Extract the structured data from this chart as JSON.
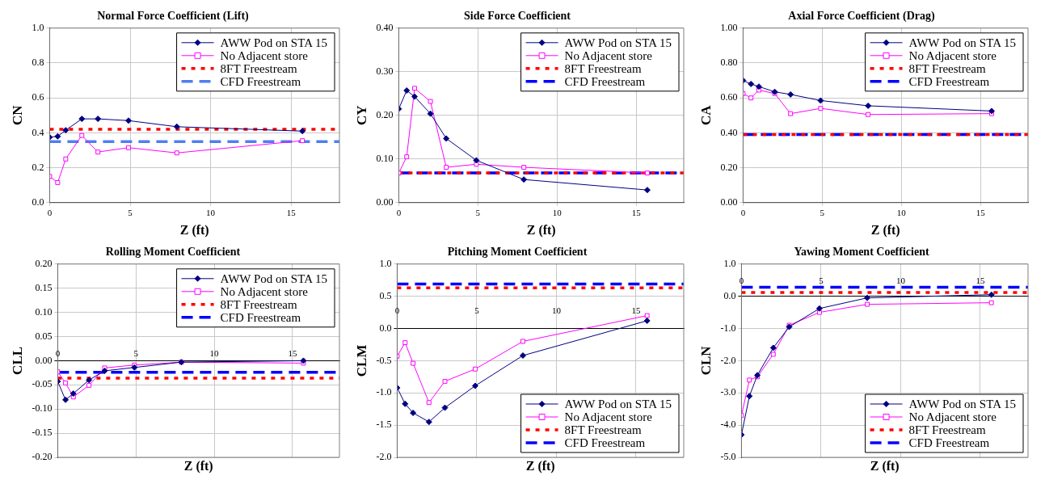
{
  "chart_data": [
    {
      "type": "line",
      "title": "Normal Force Coefficient (Lift)",
      "xlabel": "Z (ft)",
      "ylabel": "CN",
      "x": [
        0,
        0.5,
        1,
        2,
        3,
        4.9,
        7.9,
        15.7
      ],
      "xlim": [
        0,
        18
      ],
      "xticks": [
        0,
        5,
        10,
        15
      ],
      "ylim": [
        0,
        1
      ],
      "yticks": [
        {
          "value": 0,
          "label": "0.0"
        },
        {
          "value": 0.2,
          "label": "0.2"
        },
        {
          "value": 0.4,
          "label": "0.4"
        },
        {
          "value": 0.6,
          "label": "0.6"
        },
        {
          "value": 0.8,
          "label": "0.8"
        },
        {
          "value": 1,
          "label": "1.0"
        }
      ],
      "grid": true,
      "legend": "top right",
      "series": [
        {
          "name": "AWW Pod on STA 15",
          "color": "#000080",
          "marker": "diamond",
          "line_style": "solid",
          "values": [
            0.375,
            0.38,
            0.415,
            0.48,
            0.48,
            0.47,
            0.435,
            0.41
          ]
        },
        {
          "name": "No Adjacent store",
          "color": "#ff00ff",
          "marker": "square",
          "line_style": "solid",
          "values": [
            0.15,
            0.115,
            0.25,
            0.385,
            0.29,
            0.315,
            0.285,
            0.355
          ]
        }
      ],
      "ref_lines": [
        {
          "axis": "y",
          "value": 0.42,
          "label": "8FT Freestream",
          "color": "#ff0000",
          "line_style": "dotted"
        },
        {
          "axis": "y",
          "value": 0.35,
          "label": "CFD Freestream",
          "color": "#4f7fef",
          "line_style": "dashed"
        }
      ]
    },
    {
      "type": "line",
      "title": "Side Force Coefficient",
      "xlabel": "Z (ft)",
      "ylabel": "CY",
      "x": [
        0,
        0.5,
        1,
        2,
        3,
        4.9,
        7.9,
        15.7
      ],
      "xlim": [
        0,
        18
      ],
      "xticks": [
        0,
        5,
        10,
        15
      ],
      "ylim": [
        0,
        0.4
      ],
      "yticks": [
        {
          "value": 0,
          "label": "0.00"
        },
        {
          "value": 0.1,
          "label": "0.10"
        },
        {
          "value": 0.2,
          "label": "0.20"
        },
        {
          "value": 0.3,
          "label": "0.30"
        },
        {
          "value": 0.4,
          "label": "0.40"
        }
      ],
      "grid": true,
      "legend": "top right",
      "series": [
        {
          "name": "AWW Pod on STA 15",
          "color": "#000080",
          "marker": "diamond",
          "line_style": "solid",
          "values": [
            0.215,
            0.257,
            0.243,
            0.204,
            0.147,
            0.097,
            0.053,
            0.029
          ]
        },
        {
          "name": "No Adjacent store",
          "color": "#ff00ff",
          "marker": "square",
          "line_style": "solid",
          "values": [
            0.068,
            0.105,
            0.262,
            0.232,
            0.081,
            0.088,
            0.081,
            0.068
          ]
        }
      ],
      "ref_lines": [
        {
          "axis": "y",
          "value": 0.068,
          "label": "8FT Freestream",
          "color": "#ff0000",
          "line_style": "dotted"
        },
        {
          "axis": "y",
          "value": 0.068,
          "label": "CFD Freestream",
          "color": "#0000ff",
          "line_style": "dashed"
        }
      ]
    },
    {
      "type": "line",
      "title": "Axial Force Coefficient (Drag)",
      "xlabel": "Z (ft)",
      "ylabel": "CA",
      "x": [
        0,
        0.5,
        1,
        2,
        3,
        4.9,
        7.9,
        15.7
      ],
      "xlim": [
        0,
        18
      ],
      "xticks": [
        0,
        5,
        10,
        15
      ],
      "ylim": [
        0,
        1
      ],
      "yticks": [
        {
          "value": 0,
          "label": "0.00"
        },
        {
          "value": 0.2,
          "label": "0.20"
        },
        {
          "value": 0.4,
          "label": "0.40"
        },
        {
          "value": 0.6,
          "label": "0.60"
        },
        {
          "value": 0.8,
          "label": "0.80"
        },
        {
          "value": 1,
          "label": "1.00"
        }
      ],
      "grid": true,
      "legend": "top right",
      "series": [
        {
          "name": "AWW Pod on STA 15",
          "color": "#000080",
          "marker": "diamond",
          "line_style": "solid",
          "values": [
            0.7,
            0.68,
            0.665,
            0.635,
            0.62,
            0.585,
            0.555,
            0.525
          ]
        },
        {
          "name": "No Adjacent store",
          "color": "#ff00ff",
          "marker": "square",
          "line_style": "solid",
          "values": [
            0.625,
            0.6,
            0.645,
            0.625,
            0.51,
            0.54,
            0.505,
            0.51
          ]
        }
      ],
      "ref_lines": [
        {
          "axis": "y",
          "value": 0.39,
          "label": "8FT Freestream",
          "color": "#ff0000",
          "line_style": "dotted"
        },
        {
          "axis": "y",
          "value": 0.39,
          "label": "CFD Freestream",
          "color": "#0000ff",
          "line_style": "dashed"
        }
      ]
    },
    {
      "type": "line",
      "title": "Rolling Moment Coefficient",
      "xlabel": "Z (ft)",
      "ylabel": "CLL",
      "x": [
        0,
        0.5,
        1,
        2,
        3,
        4.9,
        7.9,
        15.7
      ],
      "xlim": [
        0,
        18
      ],
      "xticks": [
        0,
        5,
        10,
        15
      ],
      "ylim": [
        -0.2,
        0.2
      ],
      "yticks": [
        {
          "value": -0.2,
          "label": "-0.20"
        },
        {
          "value": -0.15,
          "label": "-0.15"
        },
        {
          "value": -0.1,
          "label": "-0.10"
        },
        {
          "value": -0.05,
          "label": "-0.05"
        },
        {
          "value": 0,
          "label": "0.00"
        },
        {
          "value": 0.05,
          "label": "0.05"
        },
        {
          "value": 0.1,
          "label": "0.10"
        },
        {
          "value": 0.15,
          "label": "0.15"
        },
        {
          "value": 0.2,
          "label": "0.20"
        }
      ],
      "grid": true,
      "legend": "top right",
      "series": [
        {
          "name": "AWW Pod on STA 15",
          "color": "#000080",
          "marker": "diamond",
          "line_style": "solid",
          "values": [
            -0.043,
            -0.081,
            -0.068,
            -0.04,
            -0.021,
            -0.014,
            -0.003,
            0
          ]
        },
        {
          "name": "No Adjacent store",
          "color": "#ff00ff",
          "marker": "square",
          "line_style": "solid",
          "values": [
            -0.023,
            -0.046,
            -0.075,
            -0.051,
            -0.015,
            -0.009,
            -0.003,
            -0.005
          ]
        }
      ],
      "ref_lines": [
        {
          "axis": "y",
          "value": -0.036,
          "label": "8FT Freestream",
          "color": "#ff0000",
          "line_style": "dotted"
        },
        {
          "axis": "y",
          "value": -0.024,
          "label": "CFD Freestream",
          "color": "#0000ff",
          "line_style": "dashed"
        }
      ]
    },
    {
      "type": "line",
      "title": "Pitching Moment Coefficient",
      "xlabel": "Z (ft)",
      "ylabel": "CLM",
      "x": [
        0,
        0.5,
        1,
        2,
        3,
        4.9,
        7.9,
        15.7
      ],
      "xlim": [
        0,
        18
      ],
      "xticks": [
        0,
        5,
        10,
        15
      ],
      "ylim": [
        -2,
        1
      ],
      "yticks": [
        {
          "value": -2,
          "label": "-2.0"
        },
        {
          "value": -1.5,
          "label": "-1.5"
        },
        {
          "value": -1,
          "label": "-1.0"
        },
        {
          "value": -0.5,
          "label": "-0.5"
        },
        {
          "value": 0,
          "label": "0.0"
        },
        {
          "value": 0.5,
          "label": "0.5"
        },
        {
          "value": 1,
          "label": "1.0"
        }
      ],
      "grid": true,
      "legend": "bottom right",
      "series": [
        {
          "name": "AWW Pod on STA 15",
          "color": "#000080",
          "marker": "diamond",
          "line_style": "solid",
          "values": [
            -0.92,
            -1.17,
            -1.31,
            -1.45,
            -1.23,
            -0.89,
            -0.42,
            0.12
          ]
        },
        {
          "name": "No Adjacent store",
          "color": "#ff00ff",
          "marker": "square",
          "line_style": "solid",
          "values": [
            -0.43,
            -0.22,
            -0.54,
            -1.15,
            -0.82,
            -0.63,
            -0.2,
            0.2
          ]
        }
      ],
      "ref_lines": [
        {
          "axis": "y",
          "value": 0.63,
          "label": "8FT Freestream",
          "color": "#ff0000",
          "line_style": "dotted"
        },
        {
          "axis": "y",
          "value": 0.69,
          "label": "CFD Freestream",
          "color": "#0000ff",
          "line_style": "dashed"
        }
      ]
    },
    {
      "type": "line",
      "title": "Yawing Moment Coefficient",
      "xlabel": "Z (ft)",
      "ylabel": "CLN",
      "x": [
        0,
        0.5,
        1,
        2,
        3,
        4.9,
        7.9,
        15.7
      ],
      "xlim": [
        0,
        18
      ],
      "xticks": [
        0,
        5,
        10,
        15
      ],
      "ylim": [
        -5,
        1
      ],
      "yticks": [
        {
          "value": -5,
          "label": "-5.0"
        },
        {
          "value": -4,
          "label": "-4.0"
        },
        {
          "value": -3,
          "label": "-3.0"
        },
        {
          "value": -2,
          "label": "-2.0"
        },
        {
          "value": -1,
          "label": "-1.0"
        },
        {
          "value": 0,
          "label": "0.0"
        },
        {
          "value": 1,
          "label": "1.0"
        }
      ],
      "grid": true,
      "legend": "bottom right",
      "series": [
        {
          "name": "AWW Pod on STA 15",
          "color": "#000080",
          "marker": "diamond",
          "line_style": "solid",
          "values": [
            -4.3,
            -3.1,
            -2.45,
            -1.6,
            -0.95,
            -0.38,
            -0.05,
            0.05
          ]
        },
        {
          "name": "No Adjacent store",
          "color": "#ff00ff",
          "marker": "square",
          "line_style": "solid",
          "values": [
            -3.7,
            -2.6,
            -2.5,
            -1.8,
            -0.9,
            -0.5,
            -0.25,
            -0.2
          ]
        }
      ],
      "ref_lines": [
        {
          "axis": "y",
          "value": 0.12,
          "label": "8FT Freestream",
          "color": "#ff0000",
          "line_style": "dotted"
        },
        {
          "axis": "y",
          "value": 0.28,
          "label": "CFD Freestream",
          "color": "#0000ff",
          "line_style": "dashed"
        }
      ]
    }
  ]
}
